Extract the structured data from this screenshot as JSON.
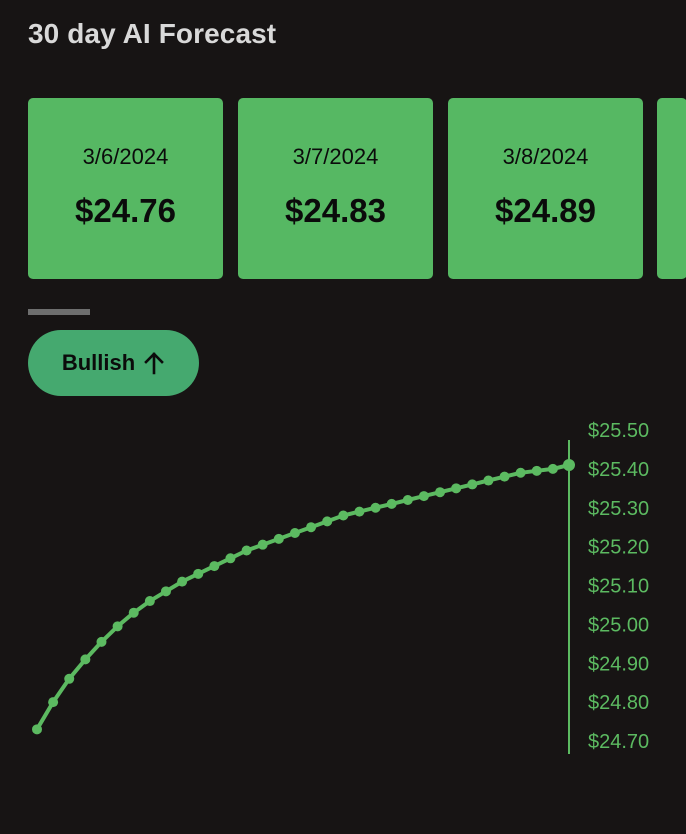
{
  "header": {
    "title": "30 day AI Forecast"
  },
  "forecast_cards": [
    {
      "date": "3/6/2024",
      "price": "$24.76"
    },
    {
      "date": "3/7/2024",
      "price": "$24.83"
    },
    {
      "date": "3/8/2024",
      "price": "$24.89"
    }
  ],
  "trend": {
    "label": "Bullish",
    "icon": "arrow-up-icon"
  },
  "colors": {
    "background": "#171414",
    "card_green": "#56b863",
    "pill_green": "#45a96f",
    "line_green": "#5cba61",
    "title_gray": "#d9d9d9"
  },
  "chart_data": {
    "type": "line",
    "series": [
      {
        "values": [
          24.73,
          24.8,
          24.86,
          24.91,
          24.955,
          24.995,
          25.03,
          25.06,
          25.085,
          25.11,
          25.13,
          25.15,
          25.17,
          25.19,
          25.205,
          25.22,
          25.235,
          25.25,
          25.265,
          25.28,
          25.29,
          25.3,
          25.31,
          25.32,
          25.33,
          25.34,
          25.35,
          25.36,
          25.37,
          25.38,
          25.39,
          25.395,
          25.4,
          25.41
        ]
      }
    ],
    "y_ticks": [
      "$25.50",
      "$25.40",
      "$25.30",
      "$25.20",
      "$25.10",
      "$25.00",
      "$24.90",
      "$24.80",
      "$24.70"
    ],
    "ylim": [
      24.7,
      25.5
    ],
    "axis_position": "right",
    "grid": false
  }
}
